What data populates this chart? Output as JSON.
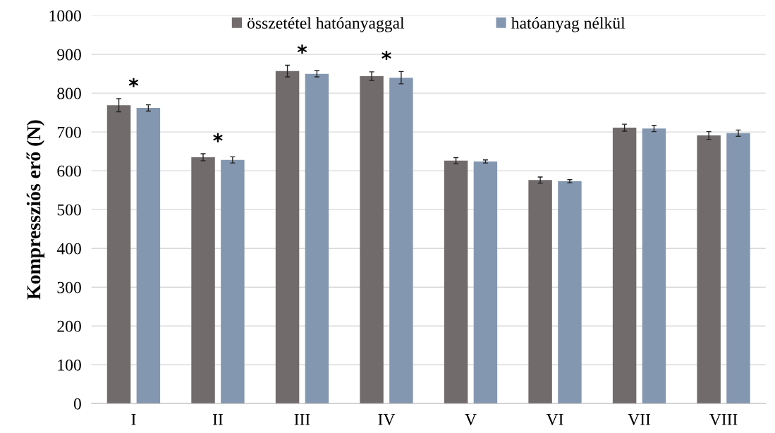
{
  "chart_data": {
    "type": "bar",
    "ylabel": "Kompressziós erő (N)",
    "categories": [
      "I",
      "II",
      "III",
      "IV",
      "V",
      "VI",
      "VII",
      "VIII"
    ],
    "series": [
      {
        "name": "összetétel hatóanyaggal",
        "color": "#726b6b",
        "values": [
          769,
          635,
          857,
          844,
          626,
          576,
          711,
          691
        ],
        "errors": [
          17,
          9,
          15,
          11,
          8,
          8,
          9,
          10
        ]
      },
      {
        "name": "hatóanyag nélkül",
        "color": "#8497b0",
        "values": [
          762,
          628,
          850,
          840,
          624,
          573,
          709,
          697
        ],
        "errors": [
          8,
          8,
          8,
          16,
          4,
          4,
          8,
          8
        ]
      }
    ],
    "ylim": [
      0,
      1000
    ],
    "yticks": [
      0,
      100,
      200,
      300,
      400,
      500,
      600,
      700,
      800,
      900,
      1000
    ],
    "grid": "y",
    "legend": "top",
    "annotations": [
      "*",
      "*",
      "*",
      "*"
    ]
  }
}
